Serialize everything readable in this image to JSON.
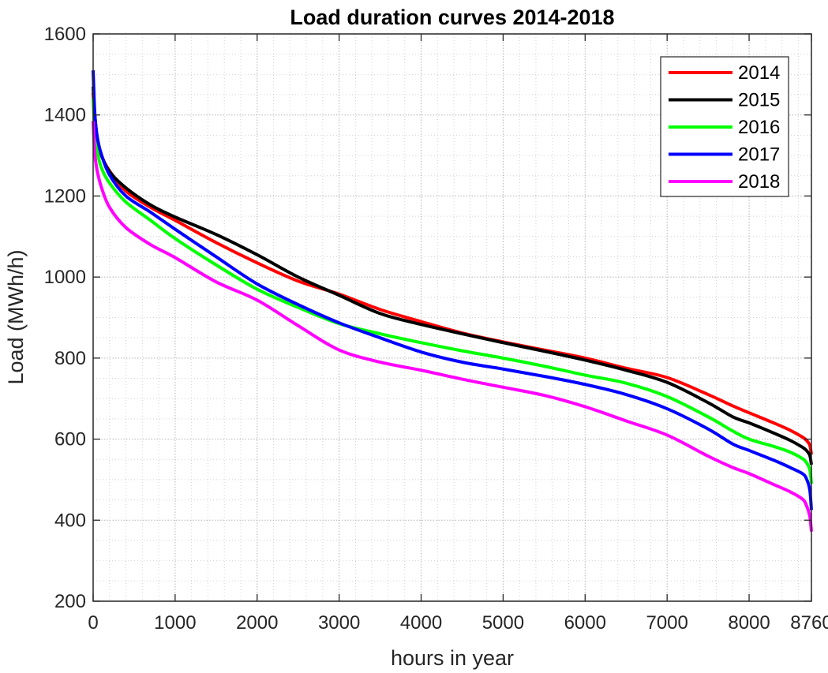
{
  "chart_data": {
    "type": "line",
    "title": "Load duration curves 2014-2018",
    "xlabel": "hours in year",
    "ylabel": "Load (MWh/h)",
    "xlim": [
      0,
      8760
    ],
    "ylim": [
      200,
      1600
    ],
    "xticks": [
      0,
      1000,
      2000,
      3000,
      4000,
      5000,
      6000,
      7000,
      8000,
      8760
    ],
    "xtick_labels": [
      "0",
      "1000",
      "2000",
      "3000",
      "4000",
      "5000",
      "6000",
      "7000",
      "8000",
      "8760"
    ],
    "yticks": [
      200,
      400,
      600,
      800,
      1000,
      1200,
      1400,
      1600
    ],
    "ytick_labels": [
      "200",
      "400",
      "600",
      "800",
      "1000",
      "1200",
      "1400",
      "1600"
    ],
    "grid": true,
    "minor_grid": true,
    "legend_position": "top-right",
    "x": [
      0,
      20,
      50,
      100,
      200,
      400,
      700,
      1000,
      1500,
      2000,
      2500,
      3000,
      3500,
      4000,
      4500,
      5000,
      5500,
      6000,
      6500,
      7000,
      7500,
      7800,
      8000,
      8300,
      8500,
      8650,
      8700,
      8740,
      8760
    ],
    "series": [
      {
        "name": "2014",
        "color": "#ff0000",
        "values": [
          1455,
          1395,
          1340,
          1300,
          1262,
          1212,
          1172,
          1140,
          1085,
          1035,
          990,
          958,
          920,
          890,
          862,
          840,
          820,
          800,
          775,
          752,
          710,
          682,
          665,
          640,
          622,
          605,
          597,
          585,
          562
        ]
      },
      {
        "name": "2015",
        "color": "#000000",
        "values": [
          1470,
          1400,
          1345,
          1302,
          1260,
          1220,
          1178,
          1148,
          1105,
          1055,
          1000,
          955,
          910,
          883,
          860,
          838,
          817,
          795,
          770,
          740,
          690,
          655,
          640,
          615,
          597,
          580,
          572,
          560,
          537
        ]
      },
      {
        "name": "2016",
        "color": "#00ff00",
        "values": [
          1440,
          1360,
          1310,
          1270,
          1232,
          1185,
          1140,
          1095,
          1030,
          970,
          925,
          885,
          860,
          838,
          818,
          800,
          780,
          758,
          738,
          705,
          655,
          620,
          600,
          582,
          568,
          552,
          542,
          525,
          490
        ]
      },
      {
        "name": "2017",
        "color": "#0000ff",
        "values": [
          1510,
          1405,
          1345,
          1303,
          1252,
          1200,
          1160,
          1118,
          1050,
          983,
          932,
          887,
          850,
          815,
          790,
          773,
          755,
          735,
          710,
          675,
          625,
          588,
          572,
          548,
          530,
          515,
          502,
          475,
          425
        ]
      },
      {
        "name": "2018",
        "color": "#ff00ff",
        "values": [
          1385,
          1305,
          1262,
          1222,
          1172,
          1122,
          1080,
          1048,
          988,
          943,
          880,
          820,
          790,
          770,
          748,
          728,
          708,
          680,
          645,
          610,
          558,
          530,
          515,
          488,
          470,
          452,
          436,
          410,
          372
        ]
      }
    ]
  }
}
